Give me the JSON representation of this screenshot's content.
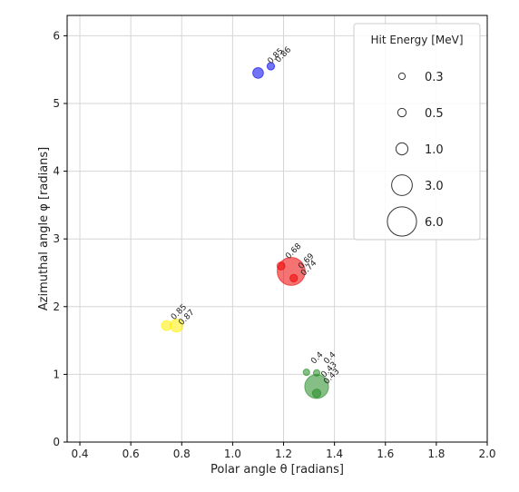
{
  "chart_data": {
    "type": "scatter",
    "title": "",
    "xlabel": "Polar angle θ [radians]",
    "ylabel": "Azimuthal angle φ [radians]",
    "xlim": [
      0.35,
      2.0
    ],
    "ylim": [
      0,
      6.3
    ],
    "xticks": [
      "0.4",
      "0.6",
      "0.8",
      "1.0",
      "1.2",
      "1.4",
      "1.6",
      "1.8",
      "2.0"
    ],
    "yticks": [
      "0",
      "1",
      "2",
      "3",
      "4",
      "5",
      "6"
    ],
    "grid": true,
    "legend": {
      "title": "Hit Energy [MeV]",
      "placement": "top-right",
      "entries": [
        {
          "label": "0.3",
          "energy": 0.3
        },
        {
          "label": "0.5",
          "energy": 0.5
        },
        {
          "label": "1.0",
          "energy": 1.0
        },
        {
          "label": "3.0",
          "energy": 3.0
        },
        {
          "label": "6.0",
          "energy": 6.0
        }
      ]
    },
    "series": [
      {
        "color": "#0000ee",
        "points": [
          {
            "x": 1.1,
            "y": 5.45,
            "energy": 0.8
          },
          {
            "x": 1.15,
            "y": 5.55,
            "energy": 0.4
          }
        ],
        "annotations": [
          {
            "x": 1.15,
            "y": 5.58,
            "text": "0.85"
          },
          {
            "x": 1.18,
            "y": 5.6,
            "text": "0.86"
          }
        ]
      },
      {
        "color": "#ee0000",
        "points": [
          {
            "x": 1.19,
            "y": 2.6,
            "energy": 0.45
          },
          {
            "x": 1.23,
            "y": 2.52,
            "energy": 5.5
          },
          {
            "x": 1.24,
            "y": 2.42,
            "energy": 0.4
          }
        ],
        "annotations": [
          {
            "x": 1.22,
            "y": 2.7,
            "text": "0.68"
          },
          {
            "x": 1.27,
            "y": 2.55,
            "text": "0.69"
          },
          {
            "x": 1.28,
            "y": 2.45,
            "text": "0.74"
          }
        ]
      },
      {
        "color": "#ffee00",
        "points": [
          {
            "x": 0.74,
            "y": 1.72,
            "energy": 0.7
          },
          {
            "x": 0.78,
            "y": 1.72,
            "energy": 1.2
          }
        ],
        "annotations": [
          {
            "x": 0.77,
            "y": 1.8,
            "text": "0.85"
          },
          {
            "x": 0.8,
            "y": 1.72,
            "text": "0.87"
          }
        ]
      },
      {
        "color": "#228b22",
        "points": [
          {
            "x": 1.29,
            "y": 1.03,
            "energy": 0.3
          },
          {
            "x": 1.33,
            "y": 1.02,
            "energy": 0.3
          },
          {
            "x": 1.33,
            "y": 0.82,
            "energy": 4.0
          },
          {
            "x": 1.33,
            "y": 0.72,
            "energy": 0.5
          }
        ],
        "annotations": [
          {
            "x": 1.32,
            "y": 1.15,
            "text": "0.4"
          },
          {
            "x": 1.37,
            "y": 1.15,
            "text": "0.4"
          },
          {
            "x": 1.36,
            "y": 0.95,
            "text": "0.43"
          },
          {
            "x": 1.37,
            "y": 0.85,
            "text": "0.43"
          }
        ]
      }
    ]
  }
}
